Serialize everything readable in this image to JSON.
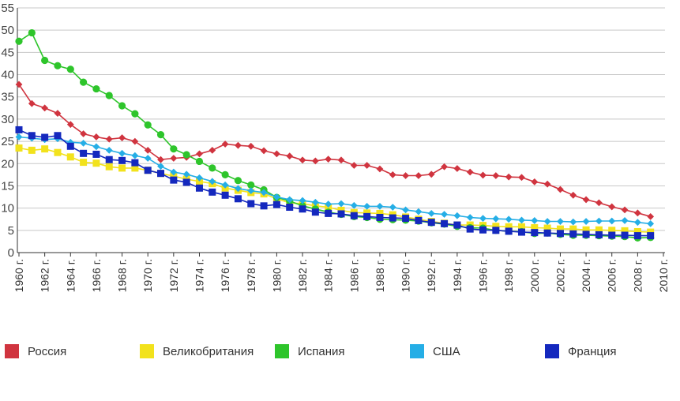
{
  "chart_data": {
    "type": "line",
    "title": "",
    "xlabel": "",
    "ylabel": "",
    "ylim": [
      0,
      55
    ],
    "yticks": [
      0,
      5,
      10,
      15,
      20,
      25,
      30,
      35,
      40,
      45,
      50,
      55
    ],
    "x": [
      1960,
      1961,
      1962,
      1963,
      1964,
      1965,
      1966,
      1967,
      1968,
      1969,
      1970,
      1971,
      1972,
      1973,
      1974,
      1975,
      1976,
      1977,
      1978,
      1979,
      1980,
      1981,
      1982,
      1983,
      1984,
      1985,
      1986,
      1987,
      1988,
      1989,
      1990,
      1991,
      1992,
      1993,
      1994,
      1995,
      1996,
      1997,
      1998,
      1999,
      2000,
      2001,
      2002,
      2003,
      2004,
      2005,
      2006,
      2007,
      2008,
      2009
    ],
    "xtick_labels": [
      "1960 г.",
      "1962 г.",
      "1964 г.",
      "1966 г.",
      "1968 г.",
      "1970 г.",
      "1972 г.",
      "1974 г.",
      "1976 г.",
      "1978 г.",
      "1980 г.",
      "1982 г.",
      "1984 г.",
      "1986 г.",
      "1988 г.",
      "1990 г.",
      "1992 г.",
      "1994 г.",
      "1996 г.",
      "1998 г.",
      "2000 г.",
      "2002 г.",
      "2004 г.",
      "2006 г.",
      "2008 г.",
      "2010 г."
    ],
    "grid": true,
    "legend_position": "bottom",
    "series": [
      {
        "name": "Россия",
        "color": "#d0343f",
        "marker": "diamond",
        "values": [
          37.8,
          33.5,
          32.5,
          31.3,
          28.8,
          26.7,
          26.0,
          25.5,
          25.8,
          25.0,
          23.0,
          20.9,
          21.2,
          21.4,
          22.2,
          23.0,
          24.4,
          24.1,
          23.9,
          22.9,
          22.2,
          21.7,
          20.8,
          20.6,
          21.0,
          20.8,
          19.6,
          19.6,
          18.8,
          17.5,
          17.3,
          17.3,
          17.6,
          19.3,
          18.9,
          18.1,
          17.4,
          17.3,
          17.0,
          16.9,
          15.9,
          15.4,
          14.2,
          12.9,
          11.9,
          11.2,
          10.3,
          9.6,
          8.9,
          8.1
        ]
      },
      {
        "name": "Великобритания",
        "color": "#f2e21c",
        "marker": "square",
        "values": [
          23.5,
          23.0,
          23.3,
          22.5,
          21.5,
          20.3,
          20.1,
          19.3,
          19.0,
          19.0,
          18.5,
          17.8,
          17.2,
          16.5,
          16.0,
          15.5,
          14.5,
          14.0,
          13.5,
          13.2,
          12.1,
          11.2,
          11.0,
          10.5,
          10.2,
          9.5,
          9.0,
          8.9,
          8.8,
          8.5,
          8.0,
          7.5,
          7.0,
          6.6,
          6.2,
          6.2,
          6.1,
          5.9,
          5.8,
          5.8,
          5.6,
          5.5,
          5.3,
          5.3,
          5.1,
          5.1,
          5.0,
          4.9,
          4.7,
          4.6
        ]
      },
      {
        "name": "Испания",
        "color": "#2ec52b",
        "marker": "circle",
        "values": [
          47.5,
          49.4,
          43.2,
          42.0,
          41.2,
          38.3,
          36.8,
          35.3,
          33.0,
          31.2,
          28.7,
          26.5,
          23.3,
          22.0,
          20.5,
          19.0,
          17.5,
          16.2,
          15.2,
          14.1,
          12.4,
          11.6,
          10.5,
          9.8,
          9.1,
          8.6,
          8.1,
          7.9,
          7.5,
          7.4,
          7.3,
          7.1,
          6.7,
          6.4,
          5.9,
          5.6,
          5.5,
          5.0,
          4.8,
          4.7,
          4.3,
          4.4,
          4.1,
          3.9,
          3.9,
          3.8,
          3.7,
          3.6,
          3.3,
          3.4
        ]
      },
      {
        "name": "США",
        "color": "#25aee6",
        "marker": "diamond",
        "values": [
          26.0,
          25.7,
          25.4,
          25.6,
          24.8,
          24.6,
          23.8,
          23.0,
          22.3,
          21.8,
          21.2,
          19.4,
          18.1,
          17.6,
          16.8,
          16.0,
          15.2,
          14.4,
          13.9,
          13.5,
          12.5,
          11.9,
          11.7,
          11.3,
          10.9,
          11.0,
          10.6,
          10.4,
          10.4,
          10.2,
          9.6,
          9.2,
          8.8,
          8.6,
          8.3,
          7.9,
          7.7,
          7.6,
          7.5,
          7.3,
          7.2,
          7.0,
          7.0,
          6.9,
          7.0,
          7.1,
          7.1,
          7.2,
          6.8,
          6.5
        ]
      },
      {
        "name": "Франция",
        "color": "#1428be",
        "marker": "square",
        "values": [
          27.6,
          26.3,
          25.9,
          26.3,
          23.9,
          22.3,
          22.1,
          20.9,
          20.7,
          20.2,
          18.5,
          17.8,
          16.3,
          15.8,
          14.5,
          13.6,
          12.9,
          12.1,
          11.0,
          10.5,
          10.8,
          10.2,
          9.8,
          9.1,
          8.8,
          8.7,
          8.3,
          8.1,
          7.9,
          7.8,
          7.7,
          7.2,
          6.8,
          6.5,
          6.2,
          5.3,
          5.1,
          5.0,
          4.8,
          4.6,
          4.5,
          4.4,
          4.3,
          4.2,
          4.1,
          4.0,
          3.9,
          3.9,
          3.8,
          3.8
        ]
      }
    ]
  }
}
